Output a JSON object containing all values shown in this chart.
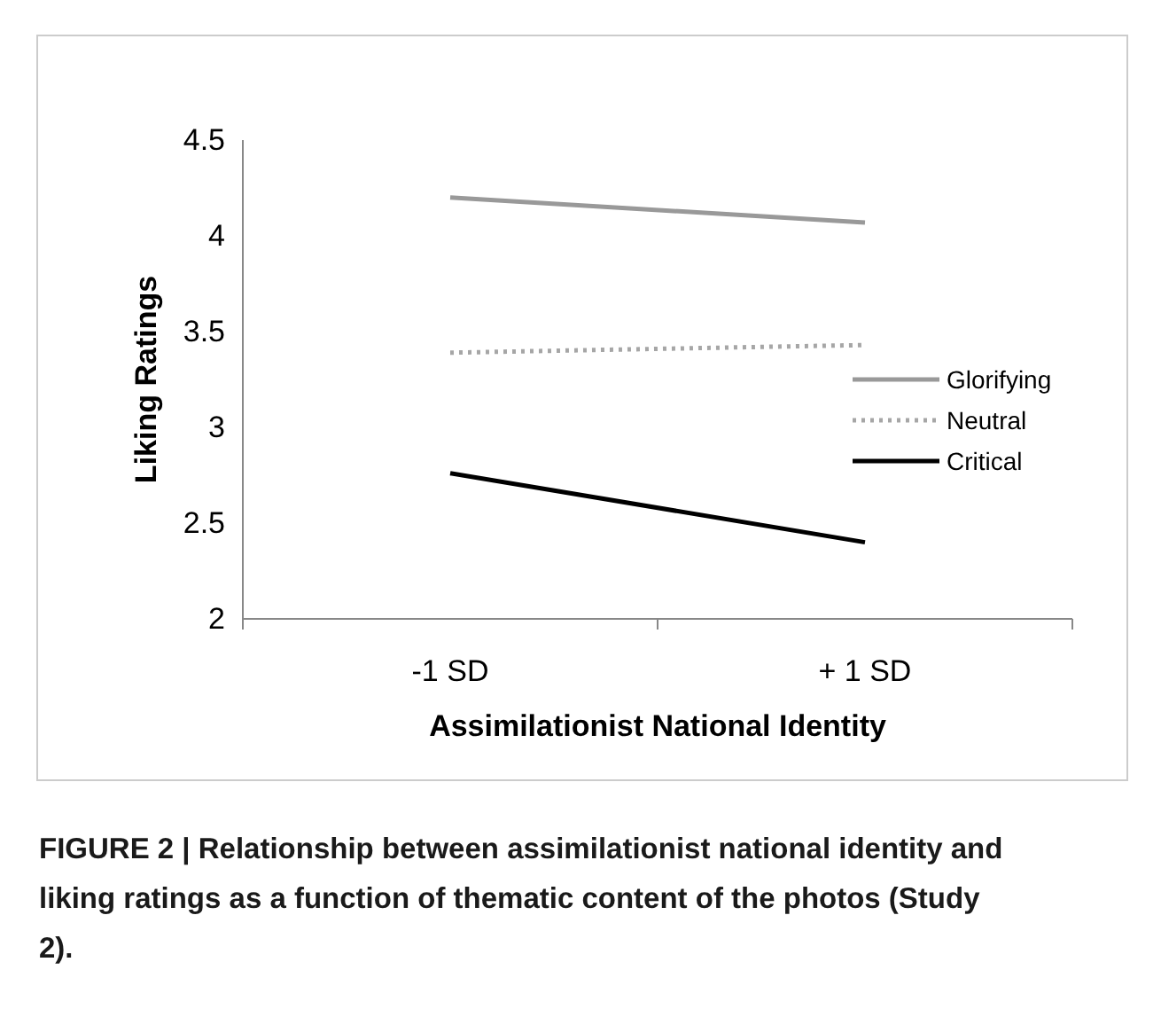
{
  "chart_data": {
    "type": "line",
    "xlabel": "Assimilationist National Identity",
    "ylabel": "Liking Ratings",
    "categories": [
      "-1 SD",
      "+ 1 SD"
    ],
    "series": [
      {
        "name": "Glorifying",
        "color": "#999999",
        "line_style": "solid",
        "values": [
          4.2,
          4.07
        ]
      },
      {
        "name": "Neutral",
        "color": "#a6a6a6",
        "line_style": "dotted",
        "values": [
          3.39,
          3.43
        ]
      },
      {
        "name": "Critical",
        "color": "#000000",
        "line_style": "solid",
        "values": [
          2.76,
          2.4
        ]
      }
    ],
    "ylim": [
      2,
      4.5
    ],
    "yticks": [
      2,
      2.5,
      3,
      3.5,
      4,
      4.5
    ],
    "grid": false,
    "legend": "right",
    "marker": "none",
    "annotations": [
      "FIGURE 2 | Relationship between assimilationist national identity and liking ratings as a function of thematic content of the photos (Study 2)."
    ]
  }
}
